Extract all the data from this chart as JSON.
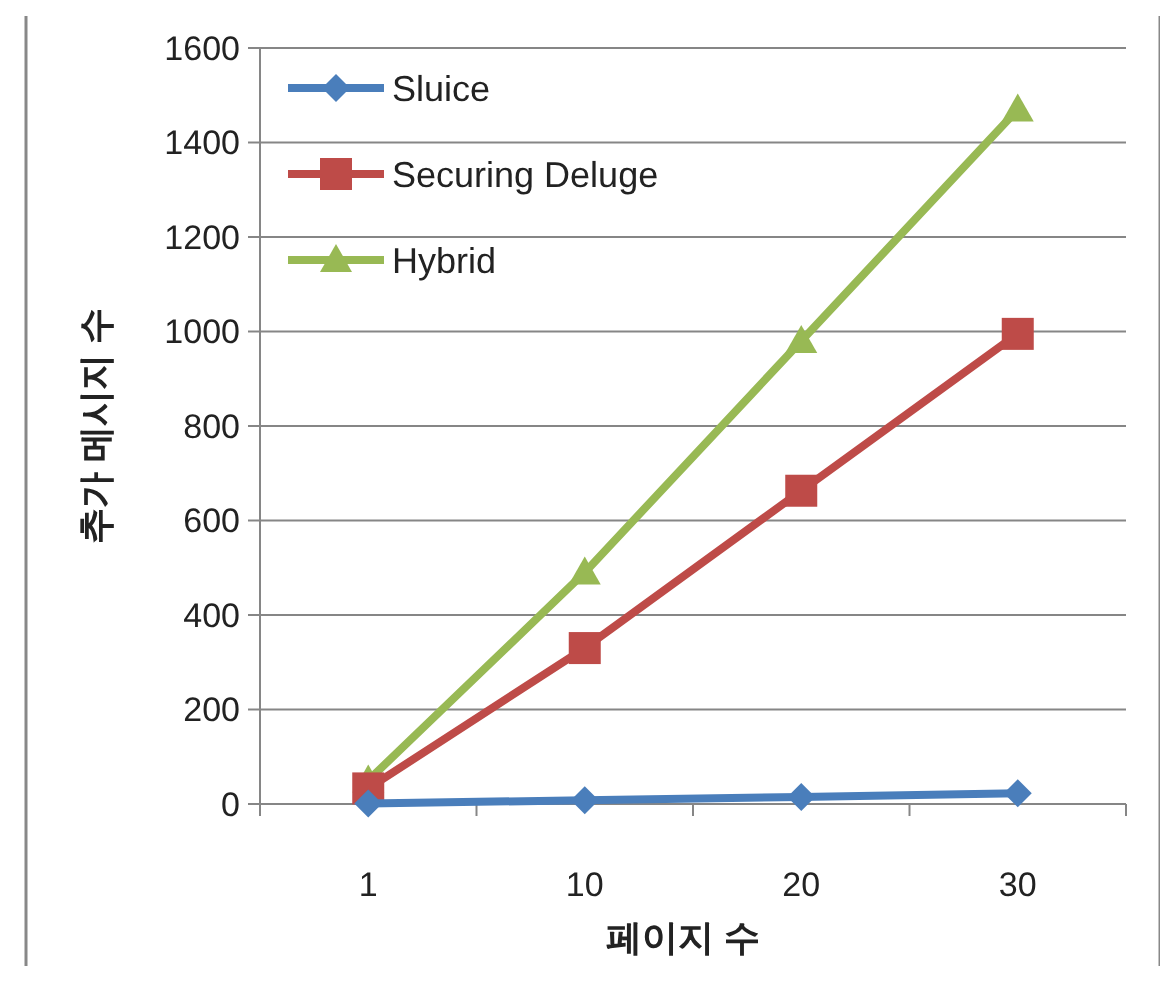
{
  "chart_data": {
    "type": "line",
    "xlabel": "페이지 수",
    "ylabel": "추가 메시지 수",
    "categories": [
      "1",
      "10",
      "20",
      "30"
    ],
    "series": [
      {
        "name": "Sluice",
        "color": "#4a7ebb",
        "marker": "diamond",
        "values": [
          1,
          8,
          15,
          23
        ]
      },
      {
        "name": "Securing Deluge",
        "color": "#be4b48",
        "marker": "square",
        "values": [
          33,
          330,
          663,
          995
        ]
      },
      {
        "name": "Hybrid",
        "color": "#98b954",
        "marker": "triangle",
        "values": [
          50,
          490,
          980,
          1470
        ]
      }
    ],
    "ylim": [
      0,
      1600
    ],
    "yticks": [
      0,
      200,
      400,
      600,
      800,
      1000,
      1200,
      1400,
      1600
    ],
    "grid": "y",
    "legend": "top left"
  }
}
